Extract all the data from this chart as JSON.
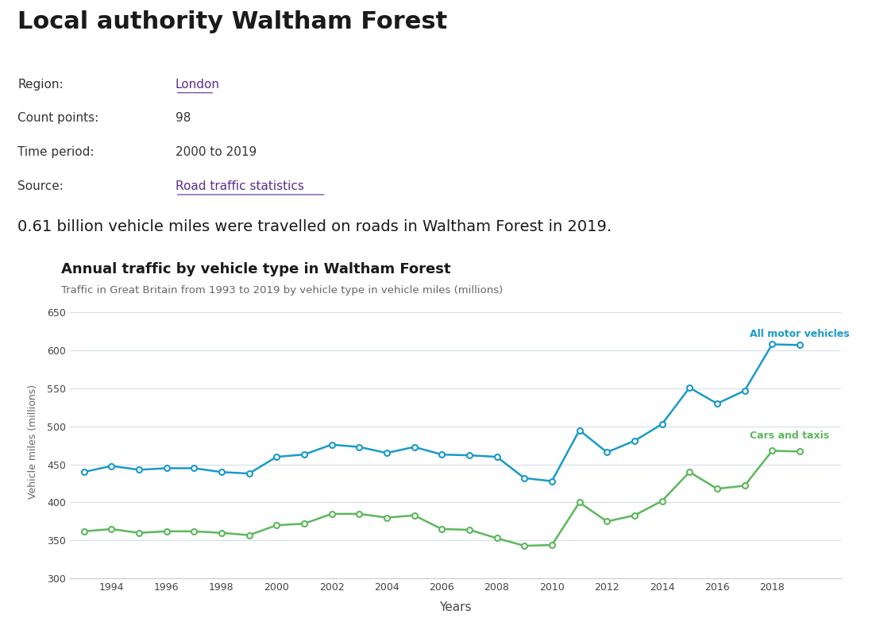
{
  "title": "Local authority Waltham Forest",
  "info_labels": [
    "Region:",
    "Count points:",
    "Time period:",
    "Source:"
  ],
  "info_values": [
    "London",
    "98",
    "2000 to 2019",
    "Road traffic statistics"
  ],
  "info_is_link": [
    true,
    false,
    false,
    true
  ],
  "summary_text": "0.61 billion vehicle miles were travelled on roads in Waltham Forest in 2019.",
  "chart_title": "Annual traffic by vehicle type in Waltham Forest",
  "chart_subtitle": "Traffic in Great Britain from 1993 to 2019 by vehicle type in vehicle miles (millions)",
  "xlabel": "Years",
  "ylabel": "Vehicle miles (millions)",
  "ylim": [
    300,
    660
  ],
  "yticks": [
    300,
    350,
    400,
    450,
    500,
    550,
    600,
    650
  ],
  "background_color": "#ffffff",
  "grid_color": "#d5dfe8",
  "link_color": "#5c2d91",
  "years": [
    1993,
    1994,
    1995,
    1996,
    1997,
    1998,
    1999,
    2000,
    2001,
    2002,
    2003,
    2004,
    2005,
    2006,
    2007,
    2008,
    2009,
    2010,
    2011,
    2012,
    2013,
    2014,
    2015,
    2016,
    2017,
    2018,
    2019
  ],
  "all_motor_vehicles": [
    440,
    448,
    443,
    445,
    445,
    440,
    438,
    460,
    463,
    476,
    473,
    465,
    473,
    463,
    462,
    460,
    432,
    428,
    495,
    466,
    481,
    503,
    551,
    530,
    547,
    608,
    607
  ],
  "cars_and_taxis": [
    362,
    365,
    360,
    362,
    362,
    360,
    357,
    370,
    372,
    385,
    385,
    380,
    383,
    365,
    364,
    353,
    343,
    344,
    400,
    375,
    383,
    402,
    440,
    418,
    422,
    468,
    467
  ],
  "all_motor_color": "#1a9bc8",
  "cars_taxis_color": "#5cb85c",
  "label_all_motor": "All motor vehicles",
  "label_cars_taxis": "Cars and taxis"
}
